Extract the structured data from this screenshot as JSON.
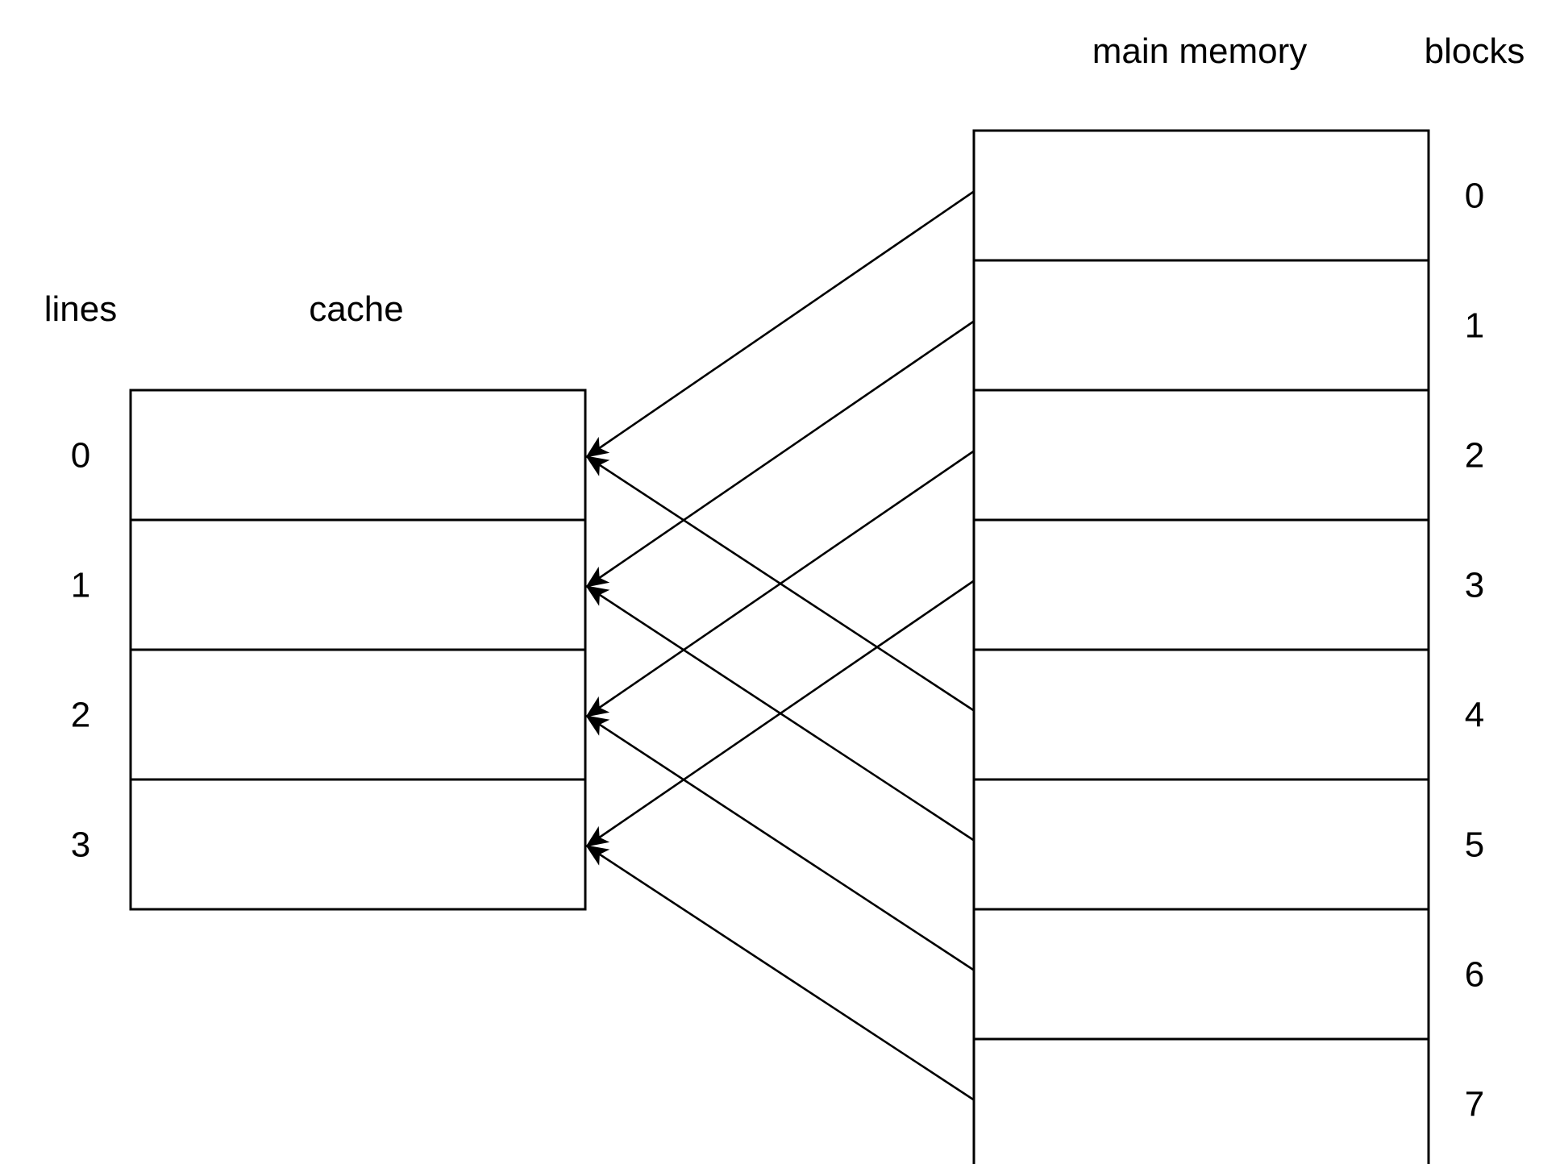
{
  "cache": {
    "title": "cache",
    "index_heading": "lines",
    "lines": [
      "0",
      "1",
      "2",
      "3"
    ]
  },
  "memory": {
    "title": "main memory",
    "index_heading": "blocks",
    "blocks": [
      "0",
      "1",
      "2",
      "3",
      "4",
      "5",
      "6",
      "7"
    ]
  },
  "mapping": [
    {
      "block": 0,
      "line": 0
    },
    {
      "block": 1,
      "line": 1
    },
    {
      "block": 2,
      "line": 2
    },
    {
      "block": 3,
      "line": 3
    },
    {
      "block": 4,
      "line": 0
    },
    {
      "block": 5,
      "line": 1
    },
    {
      "block": 6,
      "line": 2
    },
    {
      "block": 7,
      "line": 3
    }
  ],
  "colors": {
    "stroke": "#000000",
    "background": "#ffffff"
  }
}
